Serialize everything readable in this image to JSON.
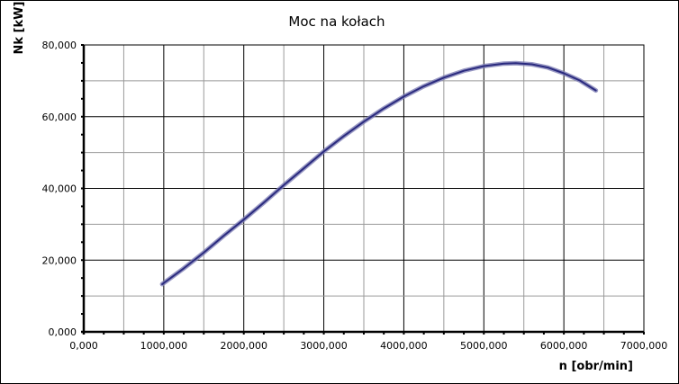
{
  "chart_data": {
    "type": "line",
    "title": "Moc na kołach",
    "xlabel": "n [obr/min]",
    "ylabel": "Nk [kW]",
    "xlim": [
      0,
      7000
    ],
    "ylim": [
      0,
      80
    ],
    "grid": true,
    "x_ticks": [
      "0,000",
      "1000,000",
      "2000,000",
      "3000,000",
      "4000,000",
      "5000,000",
      "6000,000",
      "7000,000"
    ],
    "y_ticks": [
      "0,000",
      "20,000",
      "40,000",
      "60,000",
      "80,000"
    ],
    "series": [
      {
        "color": "#2b2b7f",
        "x": [
          980,
          1250,
          1500,
          1750,
          2000,
          2250,
          2500,
          2750,
          3000,
          3250,
          3500,
          3750,
          4000,
          4250,
          4500,
          4750,
          5000,
          5250,
          5400,
          5600,
          5800,
          6000,
          6200,
          6400
        ],
        "y": [
          13.3,
          17.7,
          22.1,
          26.8,
          31.3,
          36.0,
          40.9,
          45.6,
          50.3,
          54.6,
          58.6,
          62.3,
          65.6,
          68.5,
          70.9,
          72.8,
          74.1,
          74.8,
          74.9,
          74.6,
          73.7,
          72.1,
          70.1,
          67.3
        ]
      }
    ]
  }
}
